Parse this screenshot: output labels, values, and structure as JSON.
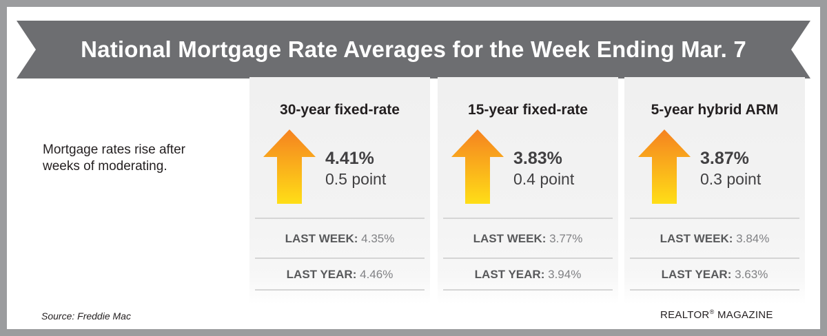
{
  "colors": {
    "background": "#9b9c9e",
    "banner": "#6d6e71",
    "arrow_top": "#f58220",
    "arrow_bottom": "#ffde17",
    "card": "#f2f2f2"
  },
  "header": {
    "title": "National Mortgage Rate Averages for the Week Ending Mar. 7"
  },
  "intro": "Mortgage rates rise after weeks of moderating.",
  "cards": [
    {
      "title": "30-year fixed-rate",
      "rate": "4.41%",
      "change": "0.5 point",
      "icon": "up-arrow-icon",
      "last_week_label": "LAST WEEK:",
      "last_week_value": "4.35%",
      "last_year_label": "LAST YEAR:",
      "last_year_value": "4.46%"
    },
    {
      "title": "15-year fixed-rate",
      "rate": "3.83%",
      "change": "0.4 point",
      "icon": "up-arrow-icon",
      "last_week_label": "LAST WEEK:",
      "last_week_value": "3.77%",
      "last_year_label": "LAST YEAR:",
      "last_year_value": "3.94%"
    },
    {
      "title": "5-year hybrid ARM",
      "rate": "3.87%",
      "change": "0.3 point",
      "icon": "up-arrow-icon",
      "last_week_label": "LAST WEEK:",
      "last_week_value": "3.84%",
      "last_year_label": "LAST YEAR:",
      "last_year_value": "3.63%"
    }
  ],
  "footer": {
    "source": "Source: Freddie Mac",
    "publisher": "REALTOR",
    "registered_mark": "®",
    "publisher_suffix": " MAGAZINE"
  }
}
